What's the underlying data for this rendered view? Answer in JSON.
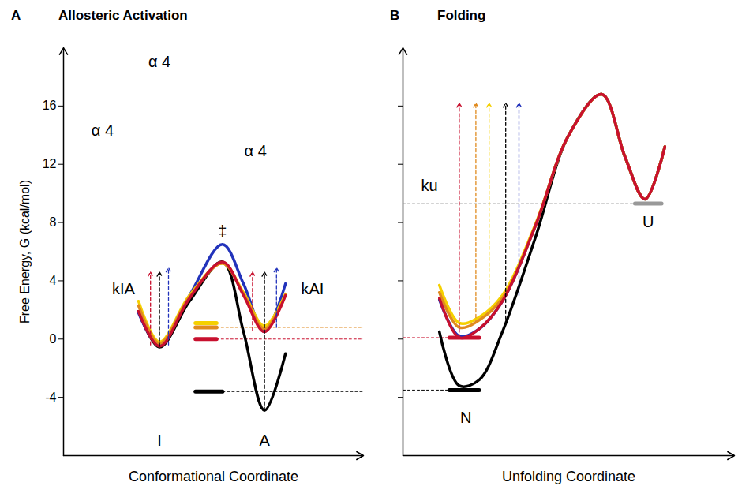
{
  "chart_data": [
    {
      "type": "line",
      "panel": "A",
      "title": "Allosteric Activation",
      "x_label": "Conformational Coordinate",
      "y_label": "Free Energy, G (kcal/mol)",
      "xlim": [
        0,
        10
      ],
      "xticks": [],
      "ylim": [
        -8,
        20
      ],
      "yticks": [
        -4,
        0,
        4,
        8,
        12,
        16
      ],
      "tick_labels": "y",
      "grid": false,
      "x": [
        2.5,
        3.2,
        4.2,
        5.3,
        6.0,
        6.7,
        7.4
      ],
      "series": [
        {
          "color": "#000000",
          "values": [
            1.9,
            -0.55,
            2.6,
            5.3,
            0.5,
            -4.9,
            -1.0
          ]
        },
        {
          "color": "#2233bb",
          "values": [
            1.8,
            -0.45,
            3.0,
            6.5,
            3.8,
            0.5,
            3.8
          ]
        },
        {
          "color": "#f5d000",
          "values": [
            2.6,
            -0.2,
            3.0,
            5.2,
            3.2,
            0.9,
            3.1
          ]
        },
        {
          "color": "#e08a1e",
          "values": [
            2.3,
            -0.3,
            2.9,
            5.2,
            3.1,
            0.7,
            3.0
          ]
        },
        {
          "color": "#c8102e",
          "values": [
            1.9,
            -0.5,
            2.8,
            5.3,
            3.0,
            0.5,
            3.0
          ]
        }
      ],
      "levels": [
        {
          "color": "#000000",
          "value": -3.6,
          "x": [
            4.4,
            5.3
          ]
        },
        {
          "color": "#c8102e",
          "value": 0.0,
          "x": [
            4.4,
            5.1
          ]
        },
        {
          "color": "#e08a1e",
          "value": 0.8,
          "x": [
            4.4,
            5.1
          ]
        },
        {
          "color": "#f5d000",
          "value": 1.1,
          "x": [
            4.4,
            5.1
          ]
        }
      ],
      "arrows": [
        {
          "color": "#c8102e",
          "x": 2.9,
          "from": -0.4,
          "to": 4.6
        },
        {
          "color": "#000000",
          "x": 3.2,
          "from": -0.5,
          "to": 4.6
        },
        {
          "color": "#2233bb",
          "x": 3.5,
          "from": -0.4,
          "to": 4.9
        },
        {
          "color": "#c8102e",
          "x": 6.3,
          "from": 0.6,
          "to": 4.6
        },
        {
          "color": "#000000",
          "x": 6.7,
          "from": -4.9,
          "to": 4.6
        },
        {
          "color": "#2233bb",
          "x": 7.1,
          "from": 0.8,
          "to": 4.9
        }
      ],
      "annotations": [
        {
          "text": "‡",
          "x": 5.3,
          "y": 7.4
        },
        {
          "text": "kIA",
          "x": 2.0,
          "y": 3.4
        },
        {
          "text": "kAI",
          "x": 8.3,
          "y": 3.4
        },
        {
          "text": "I",
          "x": 3.2,
          "y": -7.0
        },
        {
          "text": "A",
          "x": 6.7,
          "y": -7.0
        },
        {
          "text": "α 4",
          "x": 1.3,
          "y": 14.3
        },
        {
          "text": "α 4",
          "x": 3.2,
          "y": 19.0
        },
        {
          "text": "α 4",
          "x": 6.4,
          "y": 12.9
        }
      ]
    },
    {
      "type": "line",
      "panel": "B",
      "title": "Folding",
      "x_label": "Unfolding Coordinate",
      "xlim": [
        0,
        10
      ],
      "xticks": [],
      "ylim": [
        -8,
        20
      ],
      "yticks": [
        -4,
        0,
        4,
        8,
        12,
        16
      ],
      "tick_labels": false,
      "grid": false,
      "x": [
        1.1,
        1.7,
        2.3,
        3.0,
        4.0,
        5.0,
        6.0,
        6.7,
        7.3,
        7.9
      ],
      "series": [
        {
          "color": "#000000",
          "values": [
            0.5,
            -3.2,
            -2.8,
            0.5,
            7.0,
            14.0,
            16.8,
            12.5,
            9.6,
            13.2
          ]
        },
        {
          "color": "#2233bb",
          "values": [
            2.7,
            0.2,
            0.7,
            2.6,
            7.8,
            14.0,
            16.8,
            12.5,
            9.6,
            13.2
          ]
        },
        {
          "color": "#f5d000",
          "values": [
            3.7,
            1.1,
            1.5,
            3.0,
            7.9,
            14.0,
            16.8,
            12.5,
            9.6,
            13.2
          ]
        },
        {
          "color": "#e08a1e",
          "values": [
            3.2,
            0.8,
            1.3,
            2.8,
            7.8,
            14.0,
            16.8,
            12.5,
            9.6,
            13.2
          ]
        },
        {
          "color": "#c8102e",
          "values": [
            2.8,
            0.1,
            0.7,
            2.6,
            7.8,
            14.0,
            16.8,
            12.5,
            9.6,
            13.2
          ]
        }
      ],
      "levels": [
        {
          "color": "#000000",
          "value": -3.5,
          "x": [
            1.4,
            2.3
          ]
        },
        {
          "color": "#c8102e",
          "value": 0.1,
          "x": [
            1.4,
            2.3
          ]
        },
        {
          "color": "#999999",
          "value": 9.3,
          "x": [
            7.0,
            7.8
          ]
        }
      ],
      "arrows": [
        {
          "color": "#c8102e",
          "x": 1.7,
          "from": 0.1,
          "to": 16.2
        },
        {
          "color": "#e08a1e",
          "x": 2.2,
          "from": 1.1,
          "to": 16.2
        },
        {
          "color": "#f5d000",
          "x": 2.6,
          "from": 1.6,
          "to": 16.2
        },
        {
          "color": "#000000",
          "x": 3.1,
          "from": 1.0,
          "to": 16.2
        },
        {
          "color": "#2233bb",
          "x": 3.5,
          "from": 3.0,
          "to": 16.2
        }
      ],
      "annotations": [
        {
          "text": "ku",
          "x": 0.8,
          "y": 10.5
        },
        {
          "text": "N",
          "x": 1.9,
          "y": -5.4
        },
        {
          "text": "U",
          "x": 7.4,
          "y": 8.0
        }
      ]
    }
  ]
}
